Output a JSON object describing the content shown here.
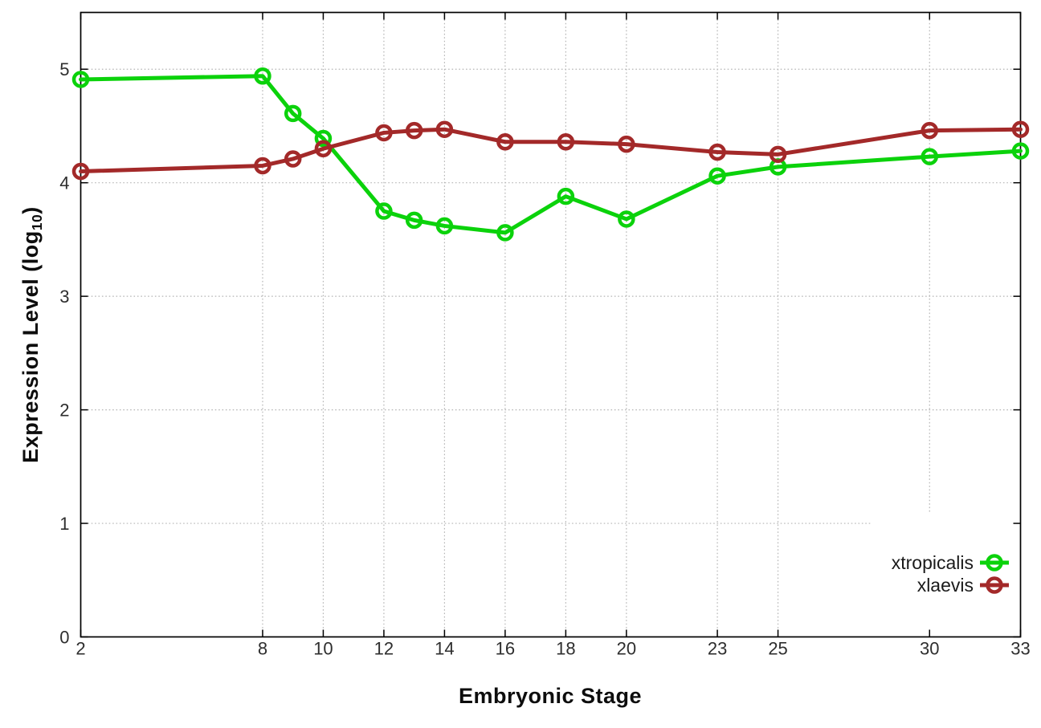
{
  "chart_data": {
    "type": "line",
    "title": "",
    "xlabel": "Embryonic Stage",
    "ylabel": "Expression Level (log10)",
    "ylabel_parts": {
      "prefix": "Expression Level (log",
      "sub": "10",
      "suffix": ")"
    },
    "x": [
      2,
      8,
      9,
      10,
      12,
      13,
      14,
      16,
      18,
      20,
      23,
      25,
      30,
      33
    ],
    "series": [
      {
        "name": "xtropicalis",
        "color": "#0bd20b",
        "values": [
          4.91,
          4.94,
          4.61,
          4.39,
          3.75,
          3.67,
          3.62,
          3.56,
          3.88,
          3.68,
          4.06,
          4.14,
          4.23,
          4.28
        ]
      },
      {
        "name": "xlaevis",
        "color": "#a32929",
        "values": [
          4.1,
          4.15,
          4.21,
          4.3,
          4.44,
          4.46,
          4.47,
          4.36,
          4.36,
          4.34,
          4.27,
          4.25,
          4.46,
          4.47
        ]
      }
    ],
    "x_ticks": [
      2,
      8,
      10,
      12,
      14,
      16,
      18,
      20,
      23,
      25,
      30,
      33
    ],
    "y_ticks": [
      0,
      1,
      2,
      3,
      4,
      5
    ],
    "xlim": [
      2,
      33
    ],
    "ylim": [
      0,
      5.5
    ],
    "grid": true,
    "legend": {
      "position": "inside-bottom-right",
      "entries": [
        "xtropicalis",
        "xlaevis"
      ],
      "marker": "open-circle-on-line",
      "opaque_background": true
    }
  },
  "style": {
    "background": "#ffffff",
    "grid_color": "#b5b5b5",
    "axis_color": "#000000",
    "tick_label_color": "#2e2e2e",
    "legend_text_color": "#1a1a1a"
  }
}
